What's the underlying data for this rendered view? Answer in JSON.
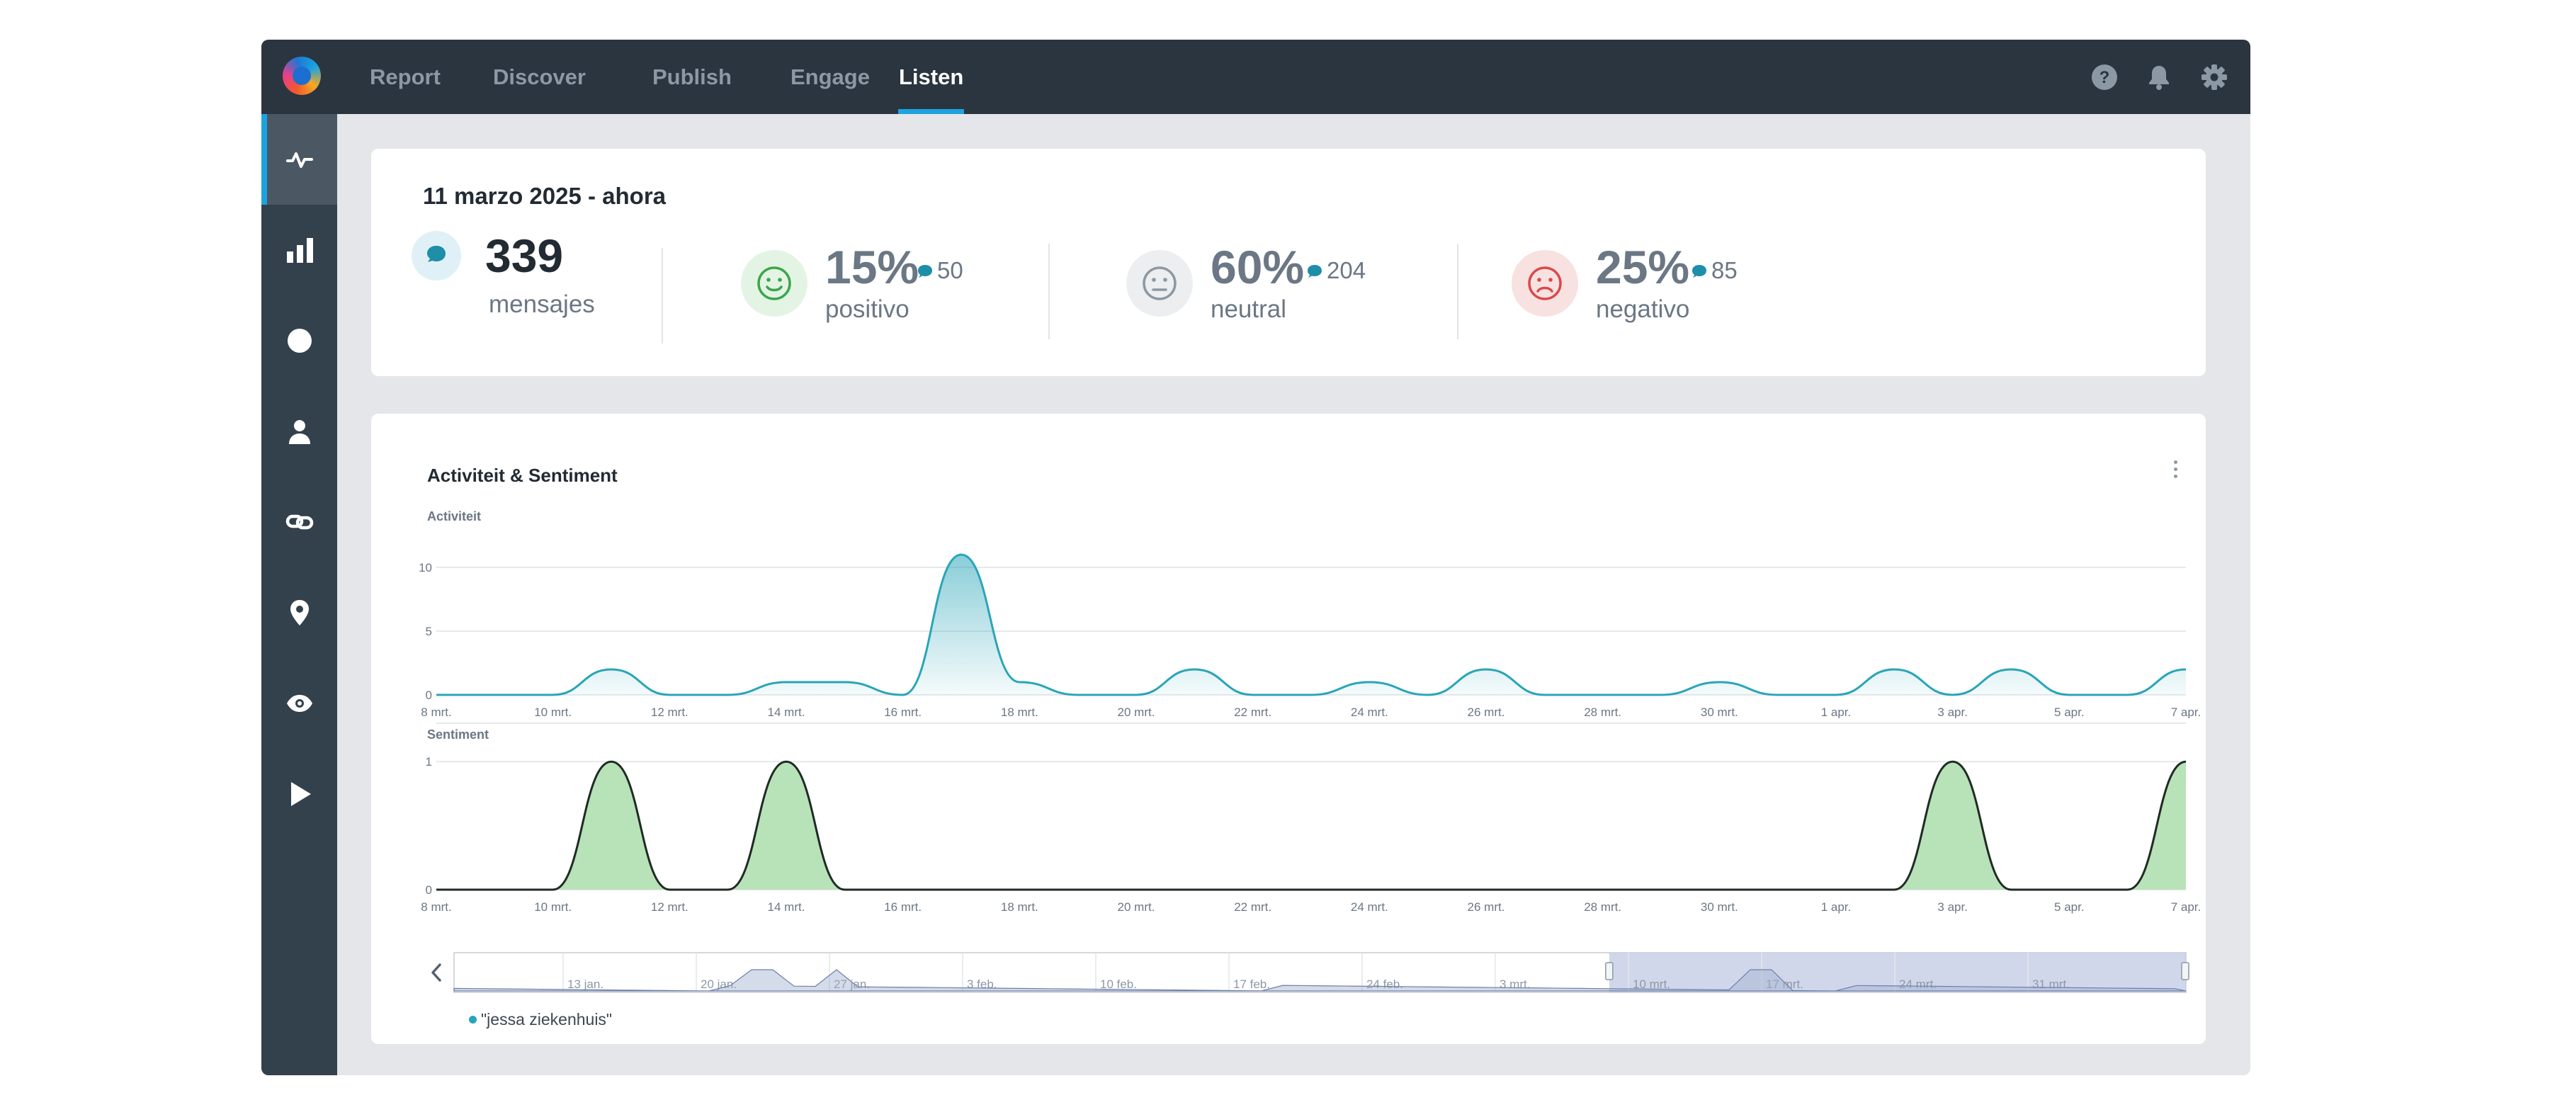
{
  "nav": {
    "items": [
      {
        "label": "Report"
      },
      {
        "label": "Discover"
      },
      {
        "label": "Publish"
      },
      {
        "label": "Engage"
      },
      {
        "label": "Listen"
      }
    ],
    "active": "Listen"
  },
  "topbar_icons": [
    "help-icon",
    "bell-icon",
    "gear-icon"
  ],
  "sidebar": {
    "items": [
      "activity-icon",
      "bar-chart-icon",
      "pie-chart-icon",
      "user-icon",
      "link-icon",
      "location-pin-icon",
      "eye-icon",
      "play-icon"
    ],
    "active": "activity-icon"
  },
  "summary": {
    "date_range": "11 marzo 2025 - ahora",
    "messages": {
      "value": "339",
      "label": "mensajes"
    },
    "positive": {
      "percent": "15%",
      "count": "50",
      "label": "positivo"
    },
    "neutral": {
      "percent": "60%",
      "count": "204",
      "label": "neutral"
    },
    "negative": {
      "percent": "25%",
      "count": "85",
      "label": "negativo"
    }
  },
  "colors": {
    "accent": "#1ca3df",
    "activity_line": "#29a5b8",
    "positive_fill": "#b8e2b8",
    "positive_icon": "#3aa64b",
    "negative_icon": "#d94a4a",
    "neutral_icon": "#8c98a4",
    "navigator_selection": "#c5cde6"
  },
  "chart": {
    "title": "Activiteit & Sentiment",
    "legend": "\"jessa ziekenhuis\""
  },
  "chart_data": [
    {
      "type": "area",
      "title": "Activiteit",
      "x_tick_labels": [
        "8 mrt.",
        "10 mrt.",
        "12 mrt.",
        "14 mrt.",
        "16 mrt.",
        "18 mrt.",
        "20 mrt.",
        "22 mrt.",
        "24 mrt.",
        "26 mrt.",
        "28 mrt.",
        "30 mrt.",
        "1 apr.",
        "3 apr.",
        "5 apr.",
        "7 apr."
      ],
      "y_ticks": [
        0,
        5,
        10
      ],
      "ylim": [
        0,
        11
      ],
      "series": [
        {
          "name": "\"jessa ziekenhuis\"",
          "x": [
            "8 mrt.",
            "9 mrt.",
            "10 mrt.",
            "11 mrt.",
            "12 mrt.",
            "13 mrt.",
            "14 mrt.",
            "15 mrt.",
            "16 mrt.",
            "17 mrt.",
            "18 mrt.",
            "19 mrt.",
            "20 mrt.",
            "21 mrt.",
            "22 mrt.",
            "23 mrt.",
            "24 mrt.",
            "25 mrt.",
            "26 mrt.",
            "27 mrt.",
            "28 mrt.",
            "29 mrt.",
            "30 mrt.",
            "31 mrt.",
            "1 apr.",
            "2 apr.",
            "3 apr.",
            "4 apr.",
            "5 apr.",
            "6 apr.",
            "7 apr."
          ],
          "values": [
            0,
            0,
            0,
            2,
            0,
            0,
            1,
            1,
            0,
            11,
            1,
            0,
            0,
            2,
            0,
            0,
            1,
            0,
            2,
            0,
            0,
            0,
            1,
            0,
            0,
            2,
            0,
            2,
            0,
            0,
            2
          ]
        }
      ]
    },
    {
      "type": "area",
      "title": "Sentiment",
      "x_tick_labels": [
        "8 mrt.",
        "10 mrt.",
        "12 mrt.",
        "14 mrt.",
        "16 mrt.",
        "18 mrt.",
        "20 mrt.",
        "22 mrt.",
        "24 mrt.",
        "26 mrt.",
        "28 mrt.",
        "30 mrt.",
        "1 apr.",
        "3 apr.",
        "5 apr.",
        "7 apr."
      ],
      "y_ticks": [
        0,
        1
      ],
      "ylim": [
        0,
        1.3
      ],
      "series": [
        {
          "x": [
            "8 mrt.",
            "9 mrt.",
            "10 mrt.",
            "11 mrt.",
            "12 mrt.",
            "13 mrt.",
            "14 mrt.",
            "15 mrt.",
            "16 mrt.",
            "17 mrt.",
            "18 mrt.",
            "19 mrt.",
            "20 mrt.",
            "21 mrt.",
            "22 mrt.",
            "23 mrt.",
            "24 mrt.",
            "25 mrt.",
            "26 mrt.",
            "27 mrt.",
            "28 mrt.",
            "29 mrt.",
            "30 mrt.",
            "31 mrt.",
            "1 apr.",
            "2 apr.",
            "3 apr.",
            "4 apr.",
            "5 apr.",
            "6 apr.",
            "7 apr."
          ],
          "values": [
            0,
            0,
            0,
            1,
            0,
            0,
            1,
            0,
            0,
            0,
            0,
            0,
            0,
            0,
            0,
            0,
            0,
            0,
            0,
            0,
            0,
            0,
            0,
            0,
            0,
            0,
            1,
            0,
            0,
            0,
            1
          ]
        }
      ]
    }
  ],
  "navigator": {
    "labels": [
      "13 jan.",
      "20 jan.",
      "27 jan.",
      "3 feb.",
      "10 feb.",
      "17 feb.",
      "24 feb.",
      "3 mrt.",
      "10 mrt.",
      "17 mrt.",
      "24 mrt.",
      "31 mrt."
    ],
    "selection_start_fraction": 0.667,
    "selection_end_fraction": 1.0
  }
}
